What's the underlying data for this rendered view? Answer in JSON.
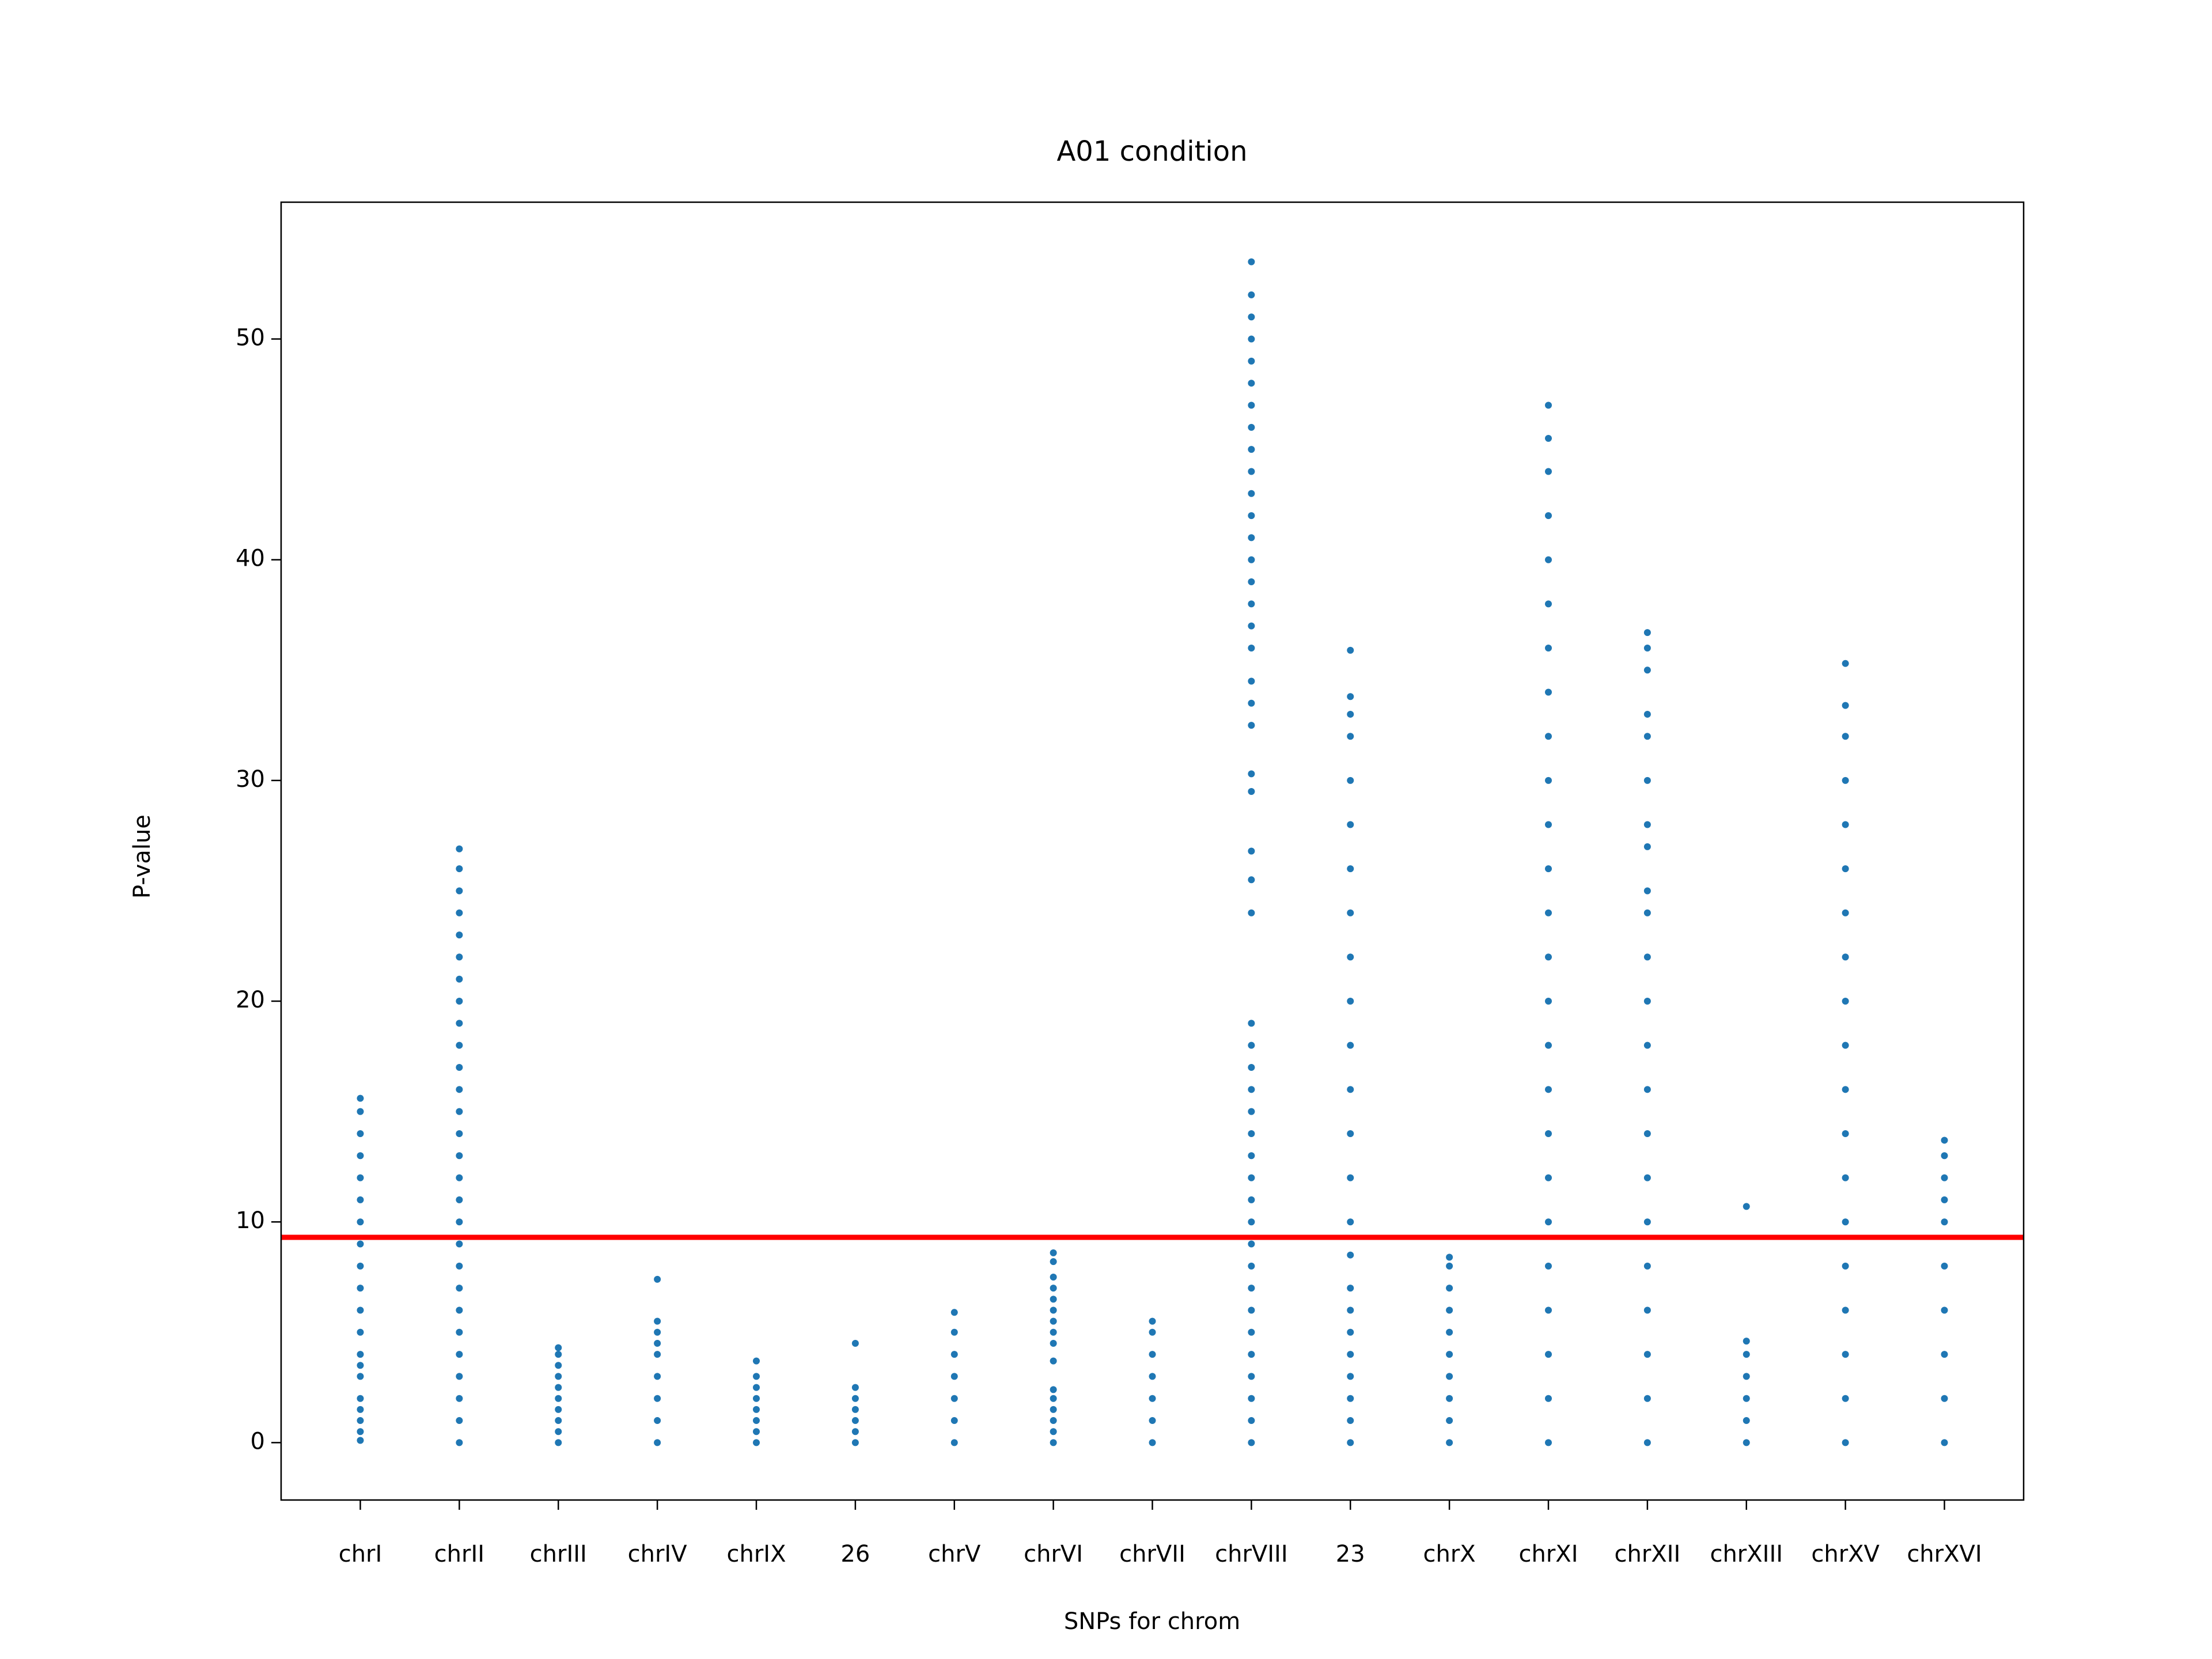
{
  "chart_data": {
    "type": "strip",
    "title": "A01 condition",
    "x_label": "SNPs for chrom",
    "y_label": "P-value",
    "categories": [
      "chrI",
      "chrII",
      "chrIII",
      "chrIV",
      "chrIX",
      "26",
      "chrV",
      "chrVI",
      "chrVII",
      "chrVIII",
      "23",
      "chrX",
      "chrXI",
      "chrXII",
      "chrXIII",
      "chrXV",
      "chrXVI"
    ],
    "values": [
      [
        0.1,
        0.5,
        1,
        1.5,
        2,
        3,
        3.5,
        4,
        5,
        6,
        7,
        8,
        9,
        10,
        11,
        12,
        13,
        14,
        15,
        15.6
      ],
      [
        0,
        1,
        2,
        3,
        4,
        5,
        6,
        7,
        8,
        9,
        10,
        11,
        12,
        13,
        14,
        15,
        16,
        17,
        18,
        19,
        20,
        21,
        22,
        23,
        24,
        25,
        26,
        26.9
      ],
      [
        0,
        0.5,
        1,
        1.5,
        2,
        2.5,
        3,
        3.5,
        4,
        4.3
      ],
      [
        0,
        1,
        2,
        3,
        4,
        4.5,
        5,
        5.5,
        7.4
      ],
      [
        0,
        0.5,
        1,
        1.5,
        2,
        2.5,
        3,
        3.7
      ],
      [
        0,
        0.5,
        1,
        1.5,
        2,
        2.5,
        4.5
      ],
      [
        0,
        1,
        2,
        3,
        4,
        5,
        5.9
      ],
      [
        0,
        0.5,
        1,
        1.5,
        2,
        2.4,
        3.7,
        4.5,
        5,
        5.5,
        6,
        6.5,
        7,
        7.5,
        8.2,
        8.6
      ],
      [
        0,
        1,
        2,
        3,
        4,
        5,
        5.5
      ],
      [
        0,
        1,
        2,
        3,
        4,
        5,
        6,
        7,
        8,
        9,
        10,
        11,
        12,
        13,
        14,
        15,
        16,
        17,
        18,
        19,
        24,
        25.5,
        26.8,
        29.5,
        30.3,
        32.5,
        33.5,
        34.5,
        36,
        37,
        38,
        39,
        40,
        41,
        42,
        43,
        44,
        45,
        46,
        47,
        48,
        49,
        50,
        51,
        52,
        53.5
      ],
      [
        0,
        1,
        2,
        3,
        4,
        5,
        6,
        7,
        8.5,
        10,
        12,
        14,
        16,
        18,
        20,
        22,
        24,
        26,
        28,
        30,
        32,
        33,
        33.8,
        35.9
      ],
      [
        0,
        1,
        2,
        3,
        4,
        5,
        6,
        7,
        8,
        8.4
      ],
      [
        0,
        2,
        4,
        6,
        8,
        10,
        12,
        14,
        16,
        18,
        20,
        22,
        24,
        26,
        28,
        30,
        32,
        34,
        36,
        38,
        40,
        42,
        44,
        45.5,
        47
      ],
      [
        0,
        2,
        4,
        6,
        8,
        10,
        12,
        14,
        16,
        18,
        20,
        22,
        24,
        25,
        27,
        28,
        30,
        32,
        33,
        35,
        36,
        36.7
      ],
      [
        0,
        1,
        2,
        3,
        4,
        4.6,
        10.7
      ],
      [
        0,
        2,
        4,
        6,
        8,
        10,
        12,
        14,
        16,
        18,
        20,
        22,
        24,
        26,
        28,
        30,
        32,
        33.4,
        35.3
      ],
      [
        0,
        2,
        4,
        6,
        8,
        10,
        11,
        12,
        13,
        13.7
      ]
    ],
    "color": "#1f77b4",
    "hline": {
      "value": 9.3,
      "color": "#ff0000"
    },
    "xlim": [
      -0.8,
      16.8
    ],
    "ylim": [
      -2.6,
      56.2
    ],
    "yticks": [
      0,
      10,
      20,
      30,
      40,
      50
    ],
    "grid": false
  }
}
